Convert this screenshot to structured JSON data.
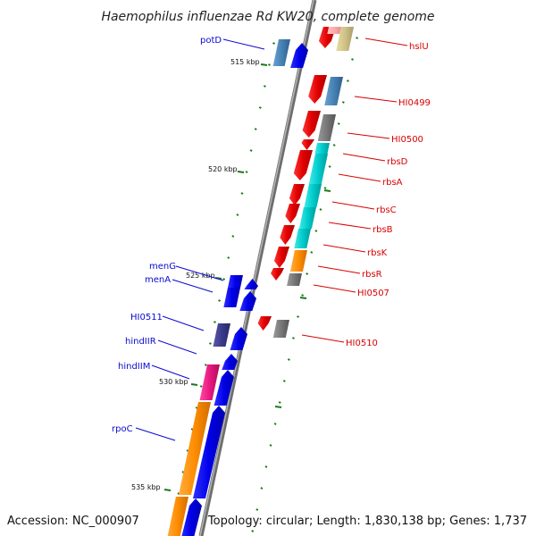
{
  "title": "Haemophilus influenzae Rd KW20, complete genome",
  "accession": "Accession: NC_000907",
  "topology": "Topology: circular; Length: 1,830,138 bp; Genes: 1,737",
  "colors": {
    "forward_label": "#0a0ad0",
    "reverse_label": "#d80000",
    "backbone": "#8a8a8a",
    "tick": "#1a7a1a"
  },
  "kbp_labels": [
    "515 kbp",
    "520 kbp",
    "525 kbp",
    "530 kbp",
    "535 kbp"
  ],
  "left_labels": [
    "potD",
    "menG",
    "menA",
    "HI0511",
    "hindIIR",
    "hindIIM",
    "rpoC"
  ],
  "right_labels": [
    "hslU",
    "HI0499",
    "HI0500",
    "rbsD",
    "rbsA",
    "rbsC",
    "rbsB",
    "rbsK",
    "rbsR",
    "HI0507",
    "HI0510"
  ]
}
